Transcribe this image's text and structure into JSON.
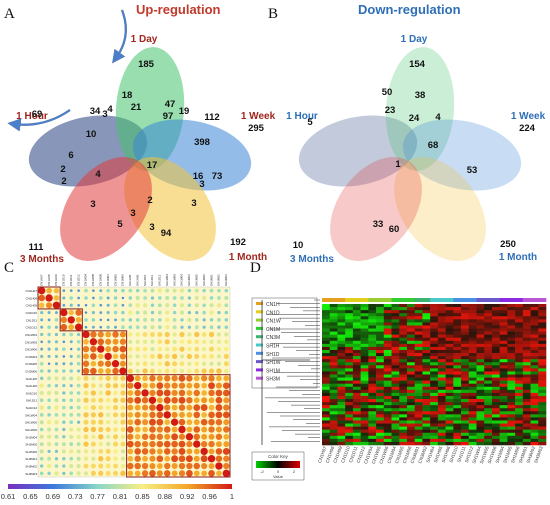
{
  "panels": [
    {
      "letter": "A",
      "title": "Up-regulation",
      "title_color": "#c0392b"
    },
    {
      "letter": "B",
      "title": "Down-regulation",
      "title_color": "#2e6fb7"
    },
    {
      "letter": "C"
    },
    {
      "letter": "D"
    }
  ],
  "venn_sets": [
    "1 Hour",
    "1 Day",
    "1 Week",
    "1 Month",
    "3 Months"
  ],
  "venn_up": {
    "label_color": "#a0261e",
    "values": [
      "185",
      "69",
      "295",
      "192",
      "111",
      "18",
      "34",
      "4",
      "10",
      "6",
      "3",
      "21",
      "97",
      "47",
      "19",
      "112",
      "398",
      "17",
      "2",
      "2",
      "4",
      "16",
      "73",
      "3",
      "3",
      "2",
      "3",
      "3",
      "5",
      "3",
      "94"
    ]
  },
  "venn_down": {
    "label_color": "#2e6fb7",
    "values": [
      "154",
      "5",
      "224",
      "250",
      "10",
      "50",
      "23",
      "38",
      "24",
      "4",
      "68",
      "53",
      "1",
      "33",
      "60"
    ]
  },
  "corr_labels": [
    "CN1H07",
    "CN1H08",
    "CN1H09",
    "CN1D10",
    "CN1D11",
    "CN1D12",
    "CN1W04",
    "CN1W05",
    "CN1W06",
    "CN1M04",
    "CN1M05",
    "CN1M06",
    "SH1H05",
    "SH1H06",
    "SH1D10",
    "SH1D11",
    "SH1D12",
    "SH1W04",
    "SH1W05",
    "SH1W06",
    "SH1M04",
    "SH1M05",
    "SH1M06",
    "SH3M01",
    "SH3M02",
    "SH3M03"
  ],
  "corr_scale": [
    "0.61",
    "0.65",
    "0.69",
    "0.73",
    "0.77",
    "0.81",
    "0.85",
    "0.88",
    "0.92",
    "0.96",
    "1"
  ],
  "heat_legend": [
    "CN1H",
    "CN1D",
    "CN1W",
    "CN1M",
    "CN3M",
    "SH1H",
    "SH1D",
    "SH1W",
    "SH1M",
    "SH3M"
  ],
  "heat_legend_colors": [
    "#e6a020",
    "#e2cf1c",
    "#9acd32",
    "#32cd32",
    "#3cb371",
    "#48c8c8",
    "#4a90e2",
    "#6a5acd",
    "#8a2be2",
    "#ba55d3"
  ],
  "color_key": {
    "title": "Color Key",
    "tick_labels": [
      "-2",
      "0",
      "2"
    ],
    "xlabel": "Value"
  },
  "heat_columns": [
    "CN1H07",
    "CN1H08",
    "CN1H09",
    "CN1D10",
    "CN1D11",
    "CN1D12",
    "CN1W04",
    "CN1W05",
    "CN1W06",
    "CN1M04",
    "CN1M05",
    "CN1M06",
    "CN3M01",
    "CN3M02",
    "SH1H04",
    "SH1H05",
    "SH1H06",
    "SH1D10",
    "SH1D11",
    "SH1D12",
    "SH1W04",
    "SH1W05",
    "SH1W06",
    "SH1M04",
    "SH1M05",
    "SH1M06",
    "SH3M01",
    "SH3M02",
    "SH3M03"
  ],
  "colors": {
    "venn_green": "#43c36b",
    "venn_blue": "#3b86d6",
    "venn_yellow": "#f3c338",
    "venn_red": "#e23c3c",
    "venn_navy": "#26407f",
    "arrow_up": "#d08a2e",
    "arrow_down": "#4a7fc9"
  }
}
